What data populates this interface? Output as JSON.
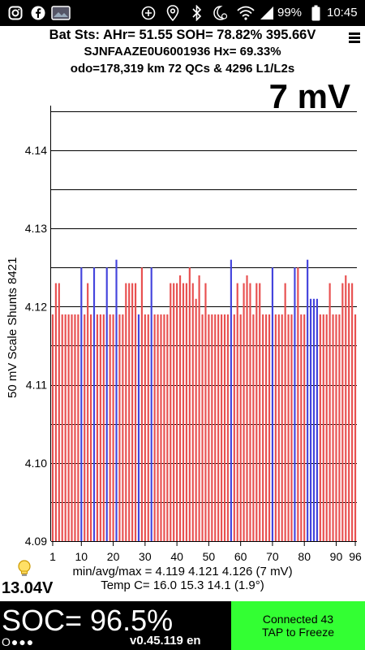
{
  "status_bar": {
    "battery": "99%",
    "time": "10:45",
    "icons": [
      "instagram-icon",
      "facebook-icon",
      "photo-icon",
      "add-circle-icon",
      "location-icon",
      "bluetooth-icon",
      "moon-alarm-icon",
      "wifi-icon",
      "signal-icon",
      "battery-icon"
    ]
  },
  "header": {
    "line1": "Bat Sts: AHr= 51.55 SOH= 78.82% 395.66V",
    "line2": "SJNFAAZE0U6001936   Hx= 69.33%",
    "line3": "odo=178,319 km 72 QCs & 4296 L1/L2s"
  },
  "spread": "7 mV",
  "y_axis_label": "50 mV Scale   Shunts 8421",
  "chart_data": {
    "type": "bar",
    "ylim": [
      4.09,
      4.145
    ],
    "y_ticks": [
      "4.14",
      "4.13",
      "4.12",
      "4.11",
      "4.10",
      "4.09"
    ],
    "x_ticks": [
      "1",
      "10",
      "20",
      "30",
      "40",
      "50",
      "60",
      "70",
      "80",
      "90",
      "96"
    ],
    "colors": {
      "normal": "#e85050",
      "high": "#4444dd"
    },
    "high_cells": [
      10,
      14,
      18,
      21,
      28,
      32,
      57,
      70,
      77,
      81,
      82,
      83,
      84
    ],
    "values": [
      4.119,
      4.123,
      4.123,
      4.119,
      4.119,
      4.119,
      4.119,
      4.119,
      4.119,
      4.125,
      4.119,
      4.123,
      4.119,
      4.125,
      4.119,
      4.119,
      4.119,
      4.125,
      4.119,
      4.119,
      4.126,
      4.119,
      4.119,
      4.123,
      4.123,
      4.123,
      4.123,
      4.119,
      4.125,
      4.119,
      4.119,
      4.125,
      4.119,
      4.119,
      4.119,
      4.119,
      4.119,
      4.123,
      4.123,
      4.123,
      4.124,
      4.123,
      4.123,
      4.125,
      4.123,
      4.121,
      4.124,
      4.119,
      4.123,
      4.119,
      4.119,
      4.119,
      4.119,
      4.119,
      4.119,
      4.119,
      4.126,
      4.119,
      4.123,
      4.119,
      4.123,
      4.124,
      4.123,
      4.119,
      4.123,
      4.123,
      4.119,
      4.119,
      4.119,
      4.125,
      4.119,
      4.119,
      4.119,
      4.123,
      4.119,
      4.119,
      4.125,
      4.125,
      4.119,
      4.119,
      4.126,
      4.121,
      4.121,
      4.121,
      4.119,
      4.119,
      4.119,
      4.123,
      4.119,
      4.119,
      4.119,
      4.123,
      4.124,
      4.123,
      4.123,
      4.119
    ]
  },
  "stats": {
    "line1": "min/avg/max = 4.119 4.121 4.126  (7 mV)",
    "line2": "Temp C= 16.0  15.3  14.1  (1.9°)"
  },
  "voltage": "13.04V",
  "soc": "SOC= 96.5%",
  "version": "v0.45.119 en",
  "dots": "O●●●",
  "connection": {
    "line1": "Connected 43",
    "line2": "TAP to Freeze"
  }
}
